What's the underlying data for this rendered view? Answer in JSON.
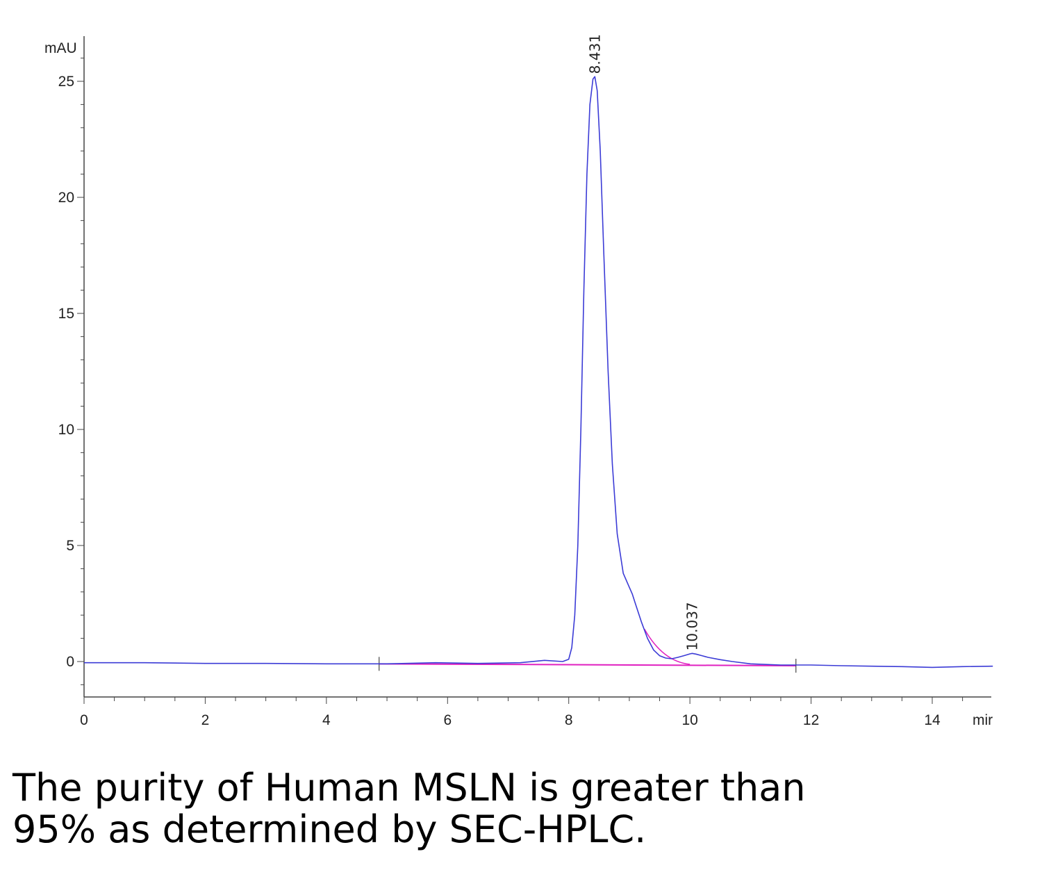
{
  "chart_data": {
    "type": "line",
    "ylabel": "mAU",
    "xlabel": "mir",
    "xlim": [
      0,
      15
    ],
    "ylim": [
      -1.5,
      27
    ],
    "x_ticks": [
      0,
      2,
      4,
      6,
      8,
      10,
      12,
      14
    ],
    "y_ticks": [
      0,
      5,
      10,
      15,
      20,
      25
    ],
    "grid": false,
    "colors": {
      "trace": "#3b3bd6",
      "baseline": "#e020c0",
      "axis": "#444444"
    },
    "series": [
      {
        "x": [
          0,
          1,
          2,
          3,
          4,
          5,
          5.8,
          6.5,
          7.2,
          7.6,
          7.9,
          8.0,
          8.05,
          8.1,
          8.15,
          8.2,
          8.25,
          8.3,
          8.35,
          8.4,
          8.431,
          8.47,
          8.52,
          8.58,
          8.65,
          8.72,
          8.8,
          8.9,
          9.0,
          9.05,
          9.1,
          9.2,
          9.3,
          9.4,
          9.5,
          9.6,
          9.7,
          9.8,
          9.9,
          10.0,
          10.037,
          10.1,
          10.2,
          10.3,
          10.5,
          10.7,
          11.0,
          11.5,
          12.0,
          12.5,
          13.0,
          13.5,
          14.0,
          14.5,
          15.0
        ],
        "y": [
          -0.05,
          -0.05,
          -0.08,
          -0.08,
          -0.1,
          -0.1,
          -0.05,
          -0.08,
          -0.05,
          0.05,
          0.0,
          0.1,
          0.6,
          2.0,
          5.0,
          10.0,
          16.0,
          21.0,
          24.0,
          25.1,
          25.2,
          24.6,
          22.0,
          17.5,
          12.5,
          8.5,
          5.5,
          3.8,
          3.2,
          2.9,
          2.5,
          1.7,
          1.0,
          0.5,
          0.25,
          0.15,
          0.12,
          0.18,
          0.25,
          0.33,
          0.35,
          0.32,
          0.25,
          0.18,
          0.08,
          0.0,
          -0.1,
          -0.15,
          -0.15,
          -0.18,
          -0.2,
          -0.22,
          -0.25,
          -0.22,
          -0.2
        ]
      }
    ],
    "integration_baseline": {
      "x": [
        4.87,
        11.75
      ],
      "y": [
        -0.1,
        -0.18
      ]
    },
    "integration_markers": [
      4.87,
      11.75
    ],
    "peak_labels": [
      {
        "x": 8.431,
        "y": 25.2,
        "text": "8.431"
      },
      {
        "x": 10.037,
        "y": 0.35,
        "text": "10.037"
      }
    ]
  },
  "caption": {
    "line1": "The purity of Human MSLN is greater than",
    "line2": "95% as determined by SEC-HPLC."
  }
}
